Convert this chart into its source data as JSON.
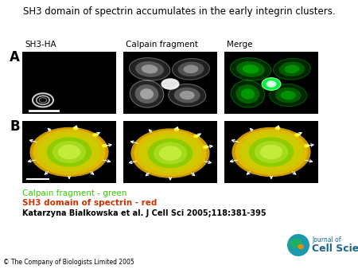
{
  "title": "SH3 domain of spectrin accumulates in the early integrin clusters.",
  "title_fontsize": 8.5,
  "label_A": "A",
  "label_B": "B",
  "col_labels": [
    "SH3-HA",
    "Calpain fragment",
    "Merge"
  ],
  "col_label_fontsize": 7.5,
  "legend_line1": "Calpain fragment - green",
  "legend_line1_color": "#33cc00",
  "legend_line2": "SH3 domain of spectrin - red",
  "legend_line2_color": "#cc3300",
  "citation": "Katarzyna Bialkowska et al. J Cell Sci 2005;118:381-395",
  "copyright": "© The Company of Biologists Limited 2005",
  "bg_color": "#ffffff",
  "panel_bg": "#000000",
  "legend_fontsize": 7.5,
  "citation_fontsize": 7,
  "copyright_fontsize": 5.5
}
